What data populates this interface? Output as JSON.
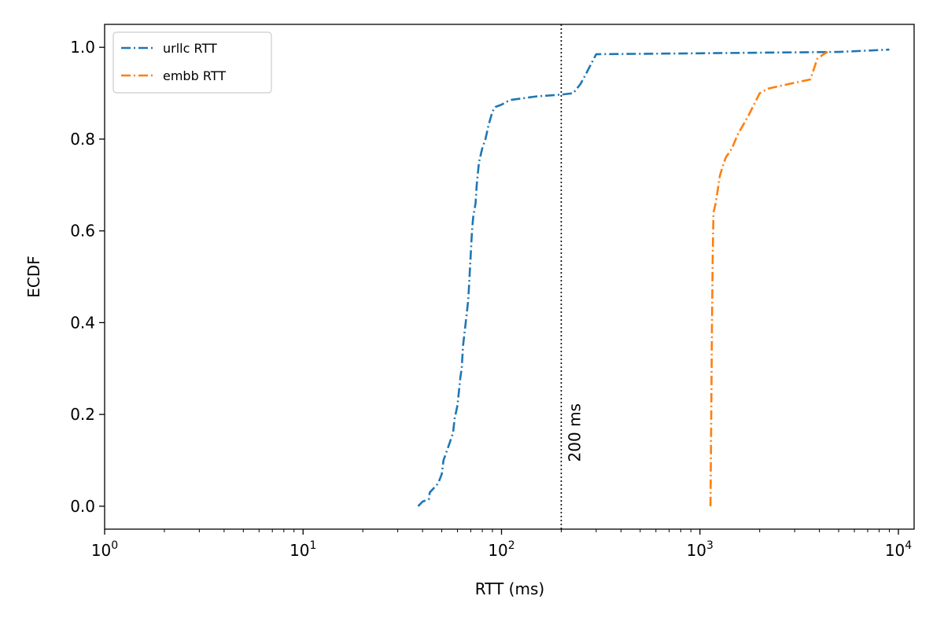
{
  "chart_data": {
    "type": "line",
    "xlabel": "RTT (ms)",
    "ylabel": "ECDF",
    "xscale": "log",
    "xlim": [
      1,
      12000
    ],
    "ylim": [
      -0.05,
      1.05
    ],
    "x_ticks": [
      1,
      10,
      100,
      1000,
      10000
    ],
    "x_tick_labels": [
      {
        "base": "10",
        "exp": "0"
      },
      {
        "base": "10",
        "exp": "1"
      },
      {
        "base": "10",
        "exp": "2"
      },
      {
        "base": "10",
        "exp": "3"
      },
      {
        "base": "10",
        "exp": "4"
      }
    ],
    "y_ticks": [
      0.0,
      0.2,
      0.4,
      0.6,
      0.8,
      1.0
    ],
    "y_tick_labels": [
      "0.0",
      "0.2",
      "0.4",
      "0.6",
      "0.8",
      "1.0"
    ],
    "grid": false,
    "legend_position": "top-left",
    "reference_line": {
      "x": 200,
      "label": "200 ms",
      "color": "#000000"
    },
    "series": [
      {
        "name": "urllc RTT",
        "color": "#1f77b4",
        "points": [
          [
            38,
            0.0
          ],
          [
            40,
            0.01
          ],
          [
            43,
            0.015
          ],
          [
            43.5,
            0.03
          ],
          [
            48,
            0.05
          ],
          [
            50,
            0.07
          ],
          [
            51,
            0.1
          ],
          [
            54,
            0.13
          ],
          [
            57,
            0.16
          ],
          [
            58,
            0.19
          ],
          [
            60,
            0.22
          ],
          [
            61,
            0.25
          ],
          [
            62,
            0.28
          ],
          [
            63,
            0.3
          ],
          [
            64,
            0.35
          ],
          [
            66,
            0.4
          ],
          [
            68,
            0.45
          ],
          [
            69,
            0.5
          ],
          [
            70,
            0.55
          ],
          [
            71,
            0.6
          ],
          [
            72,
            0.63
          ],
          [
            74,
            0.66
          ],
          [
            75,
            0.7
          ],
          [
            77,
            0.75
          ],
          [
            80,
            0.78
          ],
          [
            83,
            0.8
          ],
          [
            86,
            0.83
          ],
          [
            90,
            0.86
          ],
          [
            93,
            0.87
          ],
          [
            100,
            0.875
          ],
          [
            110,
            0.885
          ],
          [
            150,
            0.893
          ],
          [
            200,
            0.897
          ],
          [
            230,
            0.9
          ],
          [
            250,
            0.92
          ],
          [
            265,
            0.94
          ],
          [
            280,
            0.96
          ],
          [
            300,
            0.985
          ],
          [
            1000,
            0.987
          ],
          [
            5000,
            0.99
          ],
          [
            9000,
            0.995
          ]
        ]
      },
      {
        "name": "embb RTT",
        "color": "#ff7f0e",
        "points": [
          [
            1130,
            0.0
          ],
          [
            1140,
            0.2
          ],
          [
            1150,
            0.4
          ],
          [
            1160,
            0.55
          ],
          [
            1170,
            0.64
          ],
          [
            1200,
            0.66
          ],
          [
            1260,
            0.72
          ],
          [
            1300,
            0.74
          ],
          [
            1350,
            0.76
          ],
          [
            1450,
            0.78
          ],
          [
            1550,
            0.81
          ],
          [
            1750,
            0.85
          ],
          [
            2000,
            0.9
          ],
          [
            2200,
            0.91
          ],
          [
            2800,
            0.92
          ],
          [
            3600,
            0.93
          ],
          [
            3800,
            0.96
          ],
          [
            3900,
            0.975
          ],
          [
            4200,
            0.985
          ],
          [
            4400,
            0.99
          ]
        ]
      }
    ]
  }
}
